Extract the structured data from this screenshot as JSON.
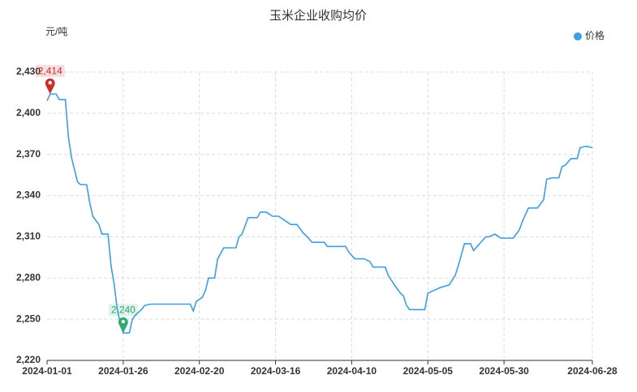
{
  "chart_data": {
    "type": "line",
    "title": "玉米企业收购均价",
    "y_label": "元/吨",
    "x": [
      "2024-01-01",
      "2024-01-02",
      "2024-01-04",
      "2024-01-05",
      "2024-01-07",
      "2024-01-08",
      "2024-01-09",
      "2024-01-11",
      "2024-01-12",
      "2024-01-14",
      "2024-01-15",
      "2024-01-16",
      "2024-01-18",
      "2024-01-19",
      "2024-01-21",
      "2024-01-22",
      "2024-01-23",
      "2024-01-24",
      "2024-01-25",
      "2024-01-26",
      "2024-01-28",
      "2024-01-29",
      "2024-01-30",
      "2024-02-01",
      "2024-02-02",
      "2024-02-04",
      "2024-02-17",
      "2024-02-18",
      "2024-02-19",
      "2024-02-21",
      "2024-02-22",
      "2024-02-23",
      "2024-02-25",
      "2024-02-26",
      "2024-02-28",
      "2024-03-03",
      "2024-03-04",
      "2024-03-05",
      "2024-03-07",
      "2024-03-10",
      "2024-03-11",
      "2024-03-13",
      "2024-03-15",
      "2024-03-17",
      "2024-03-19",
      "2024-03-21",
      "2024-03-23",
      "2024-03-25",
      "2024-03-26",
      "2024-03-28",
      "2024-04-01",
      "2024-04-02",
      "2024-04-08",
      "2024-04-09",
      "2024-04-11",
      "2024-04-14",
      "2024-04-16",
      "2024-04-17",
      "2024-04-21",
      "2024-04-22",
      "2024-04-24",
      "2024-04-26",
      "2024-04-27",
      "2024-04-28",
      "2024-04-29",
      "2024-05-04",
      "2024-05-05",
      "2024-05-07",
      "2024-05-09",
      "2024-05-12",
      "2024-05-14",
      "2024-05-15",
      "2024-05-17",
      "2024-05-19",
      "2024-05-20",
      "2024-05-22",
      "2024-05-24",
      "2024-05-25",
      "2024-05-27",
      "2024-05-29",
      "2024-06-02",
      "2024-06-04",
      "2024-06-05",
      "2024-06-07",
      "2024-06-10",
      "2024-06-12",
      "2024-06-13",
      "2024-06-15",
      "2024-06-17",
      "2024-06-18",
      "2024-06-19",
      "2024-06-21",
      "2024-06-23",
      "2024-06-24",
      "2024-06-26",
      "2024-06-28"
    ],
    "series": [
      {
        "name": "价格",
        "color": "#3b9ee6",
        "values": [
          2409,
          2414,
          2414,
          2410,
          2410,
          2383,
          2368,
          2350,
          2348,
          2348,
          2335,
          2325,
          2319,
          2312,
          2312,
          2289,
          2276,
          2258,
          2247,
          2240,
          2240,
          2250,
          2253,
          2257,
          2260,
          2261,
          2261,
          2256,
          2263,
          2266,
          2271,
          2280,
          2280,
          2294,
          2302,
          2302,
          2310,
          2312,
          2324,
          2324,
          2328,
          2328,
          2325,
          2325,
          2322,
          2319,
          2319,
          2313,
          2311,
          2306,
          2306,
          2303,
          2303,
          2299,
          2294,
          2294,
          2292,
          2288,
          2288,
          2282,
          2275,
          2269,
          2267,
          2260,
          2257,
          2257,
          2269,
          2271,
          2273,
          2275,
          2282,
          2289,
          2305,
          2305,
          2300,
          2305,
          2310,
          2310,
          2312,
          2309,
          2309,
          2315,
          2321,
          2331,
          2331,
          2337,
          2352,
          2353,
          2353,
          2361,
          2362,
          2367,
          2367,
          2375,
          2376,
          2375
        ]
      }
    ],
    "mark_points": [
      {
        "x": "2024-01-02",
        "value": 2414,
        "label": "2,414",
        "color": "#c9302c"
      },
      {
        "x": "2024-01-26",
        "value": 2240,
        "label": "2,240",
        "color": "#2eaa6e"
      }
    ],
    "xlim": [
      "2024-01-01",
      "2024-06-28"
    ],
    "xticks": [
      "2024-01-01",
      "2024-01-26",
      "2024-02-20",
      "2024-03-16",
      "2024-04-10",
      "2024-05-05",
      "2024-05-30",
      "2024-06-28"
    ],
    "ylim": [
      2220,
      2430
    ],
    "yticks": [
      {
        "value": 2220,
        "label": "2,220"
      },
      {
        "value": 2250,
        "label": "2,250"
      },
      {
        "value": 2280,
        "label": "2,280"
      },
      {
        "value": 2310,
        "label": "2,310"
      },
      {
        "value": 2340,
        "label": "2,340"
      },
      {
        "value": 2370,
        "label": "2,370"
      },
      {
        "value": 2400,
        "label": "2,400"
      },
      {
        "value": 2430,
        "label": "2,430"
      }
    ],
    "grid": true,
    "legend": "top-right"
  }
}
